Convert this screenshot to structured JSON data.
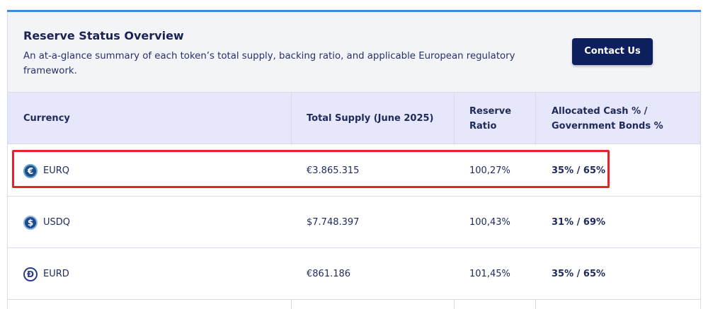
{
  "header": {
    "title": "Reserve Status Overview",
    "description": "An at-a-glance summary of each token’s total supply, backing ratio, and applicable European regulatory framework.",
    "contact_label": "Contact Us"
  },
  "table": {
    "columns": [
      "Currency",
      "Total Supply (June 2025)",
      "Reserve Ratio",
      "Allocated Cash % / Government Bonds %"
    ],
    "rows": [
      {
        "currency": "EURQ",
        "icon": "euro-coin-icon",
        "supply": "€3.865.315",
        "ratio": "100,27%",
        "allocation": "35% / 65%"
      },
      {
        "currency": "USDQ",
        "icon": "dollar-coin-icon",
        "supply": "$7.748.397",
        "ratio": "100,43%",
        "allocation": "31% / 69%"
      },
      {
        "currency": "EURD",
        "icon": "d-coin-icon",
        "supply": "€861.186",
        "ratio": "101,45%",
        "allocation": "35% / 65%"
      }
    ]
  },
  "colors": {
    "accent": "#3a8be0",
    "button": "#0d1f5c",
    "header_bg": "#f3f4f8",
    "thead_bg": "#e7e7fb",
    "highlight": "#e8222b"
  }
}
